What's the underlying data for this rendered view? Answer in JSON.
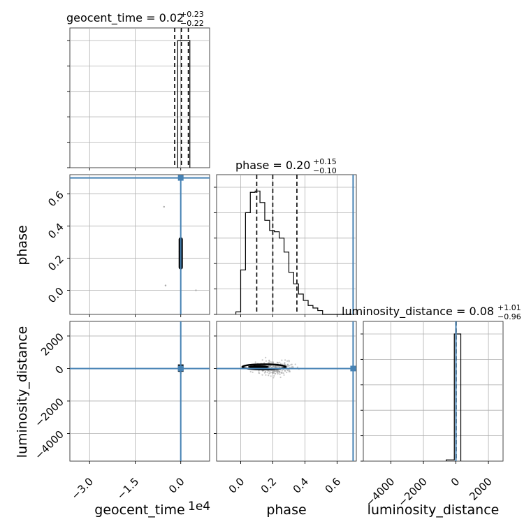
{
  "chart_data": {
    "type": "corner",
    "truth_color": "#4682b4",
    "grid": true,
    "parameters": [
      "geocent_time",
      "phase",
      "luminosity_distance"
    ],
    "titles": [
      {
        "name": "geocent_time",
        "text": "geocent_time = 0.02",
        "sup": "+0.23",
        "sub": "−0.22"
      },
      {
        "name": "phase",
        "text": "phase = 0.20",
        "sup": "+0.15",
        "sub": "−0.10"
      },
      {
        "name": "luminosity_distance",
        "text": "luminosity_distance = 0.08",
        "sup": "+1.01",
        "sub": "−0.96"
      }
    ],
    "axis_labels": {
      "x": [
        "geocent_time",
        "phase",
        "luminosity_distance"
      ],
      "y": [
        "phase",
        "luminosity_distance"
      ]
    },
    "offset_text": "1e4",
    "ranges": {
      "geocent_time": [
        -3.65,
        0.95
      ],
      "phase": [
        -0.15,
        0.72
      ],
      "luminosity_distance": [
        -5700,
        2900
      ]
    },
    "ticks": {
      "geocent_time": {
        "values": [
          -3.0,
          -1.5,
          0.0
        ],
        "labels": [
          "−3.0",
          "−1.5",
          "0.0"
        ]
      },
      "phase": {
        "values": [
          0.0,
          0.2,
          0.4,
          0.6
        ],
        "labels": [
          "0.0",
          "0.2",
          "0.4",
          "0.6"
        ]
      },
      "luminosity_distance": {
        "values": [
          -4000,
          -2000,
          0,
          2000
        ],
        "labels": [
          "−4000",
          "−2000",
          "0",
          "2000"
        ]
      }
    },
    "truths": {
      "geocent_time": 0.0,
      "phase": 0.7,
      "luminosity_distance": 0.0
    },
    "quantiles": {
      "geocent_time": [
        -0.2,
        0.02,
        0.25
      ],
      "phase": [
        0.1,
        0.2,
        0.35
      ],
      "luminosity_distance": [
        -0.88,
        0.08,
        1.09
      ]
    },
    "histograms": {
      "geocent_time": {
        "edges": [
          -0.1,
          0.1,
          0.3
        ],
        "counts": [
          1.0,
          1.0
        ]
      },
      "phase": {
        "edges": [
          -0.03,
          0.0,
          0.03,
          0.06,
          0.09,
          0.12,
          0.15,
          0.18,
          0.21,
          0.24,
          0.27,
          0.3,
          0.33,
          0.36,
          0.39,
          0.42,
          0.45,
          0.48,
          0.51,
          0.54,
          0.57,
          0.6,
          0.63,
          0.66,
          0.69
        ],
        "counts": [
          0.02,
          0.35,
          0.8,
          0.96,
          0.97,
          0.88,
          0.74,
          0.66,
          0.65,
          0.6,
          0.49,
          0.33,
          0.24,
          0.16,
          0.11,
          0.07,
          0.05,
          0.03,
          0.0,
          0.0,
          0.0,
          0.0,
          0.0,
          0.0
        ]
      },
      "luminosity_distance": {
        "edges": [
          -600,
          -100,
          0,
          300
        ],
        "counts": [
          0.01,
          1.0,
          1.0
        ]
      }
    },
    "contours": {
      "phase_vs_geocent_time": {
        "x_center": 0.0,
        "x_halfwidth": 0.04,
        "y_range": [
          0.13,
          0.33
        ]
      },
      "luminosity_distance_vs_geocent_time": {
        "x_center": 0.0,
        "x_halfwidth": 0.04,
        "y_range": [
          -200,
          250
        ]
      },
      "luminosity_distance_vs_phase": {
        "x_range": [
          0.01,
          0.28
        ],
        "y_center": 100,
        "y_halfwidth": 160
      }
    }
  }
}
